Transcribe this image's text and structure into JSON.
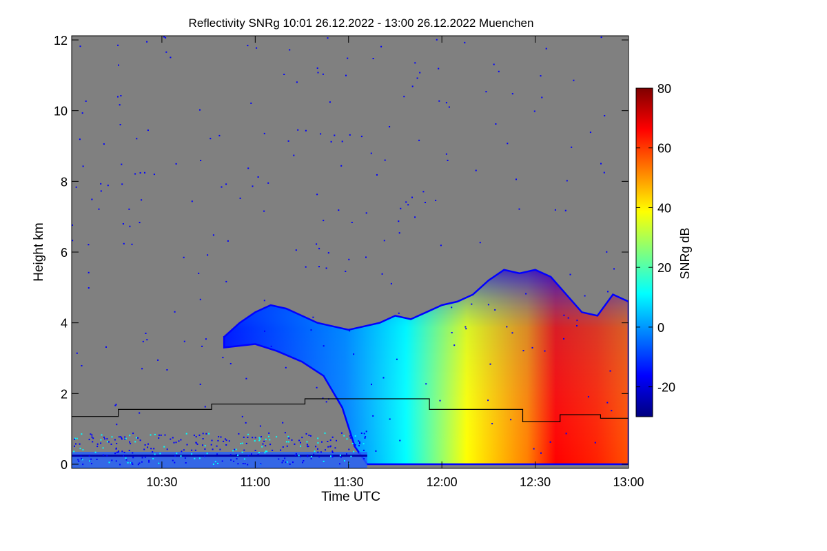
{
  "title": "Reflectivity SNRg   10:01 26.12.2022 - 13:00 26.12.2022 Muenchen",
  "chart_data": {
    "type": "heatmap",
    "xlabel": "Time UTC",
    "ylabel": "Height km",
    "xlim_minutes": [
      601,
      780
    ],
    "x_ticks": [
      {
        "value": 630,
        "label": "10:30"
      },
      {
        "value": 660,
        "label": "11:00"
      },
      {
        "value": 690,
        "label": "11:30"
      },
      {
        "value": 720,
        "label": "12:00"
      },
      {
        "value": 750,
        "label": "12:30"
      },
      {
        "value": 780,
        "label": "13:00"
      }
    ],
    "ylim": [
      0,
      12
    ],
    "y_ticks": [
      0,
      2,
      4,
      6,
      8,
      10,
      12
    ],
    "no_data_color": "#808080",
    "colorbar": {
      "label": "SNRg dB",
      "range": [
        -30,
        80
      ],
      "ticks": [
        -20,
        0,
        20,
        40,
        60,
        80
      ],
      "colors": [
        "#00007f",
        "#0000ff",
        "#007fff",
        "#00ffff",
        "#7fff7f",
        "#ffff00",
        "#ff7f00",
        "#ff0000",
        "#7f0000"
      ]
    },
    "cloud_top_km": [
      {
        "t": 650,
        "h": 3.6
      },
      {
        "t": 655,
        "h": 4.0
      },
      {
        "t": 660,
        "h": 4.3
      },
      {
        "t": 665,
        "h": 4.5
      },
      {
        "t": 670,
        "h": 4.4
      },
      {
        "t": 675,
        "h": 4.2
      },
      {
        "t": 680,
        "h": 4.0
      },
      {
        "t": 685,
        "h": 3.9
      },
      {
        "t": 690,
        "h": 3.8
      },
      {
        "t": 695,
        "h": 3.9
      },
      {
        "t": 700,
        "h": 4.0
      },
      {
        "t": 705,
        "h": 4.2
      },
      {
        "t": 710,
        "h": 4.1
      },
      {
        "t": 715,
        "h": 4.3
      },
      {
        "t": 720,
        "h": 4.5
      },
      {
        "t": 725,
        "h": 4.6
      },
      {
        "t": 730,
        "h": 4.8
      },
      {
        "t": 735,
        "h": 5.2
      },
      {
        "t": 740,
        "h": 5.5
      },
      {
        "t": 745,
        "h": 5.4
      },
      {
        "t": 750,
        "h": 5.5
      },
      {
        "t": 755,
        "h": 5.3
      },
      {
        "t": 760,
        "h": 4.8
      },
      {
        "t": 765,
        "h": 4.3
      },
      {
        "t": 770,
        "h": 4.2
      },
      {
        "t": 775,
        "h": 4.8
      },
      {
        "t": 780,
        "h": 4.6
      }
    ],
    "cloud_base_km": [
      {
        "t": 650,
        "h": 3.3
      },
      {
        "t": 660,
        "h": 3.4
      },
      {
        "t": 667,
        "h": 3.2
      },
      {
        "t": 675,
        "h": 2.9
      },
      {
        "t": 682,
        "h": 2.5
      },
      {
        "t": 688,
        "h": 1.6
      },
      {
        "t": 692,
        "h": 0.5
      },
      {
        "t": 696,
        "h": 0.0
      }
    ],
    "threshold_line_km": [
      {
        "t": 601,
        "h": 1.35
      },
      {
        "t": 616,
        "h": 1.35
      },
      {
        "t": 616,
        "h": 1.55
      },
      {
        "t": 646,
        "h": 1.55
      },
      {
        "t": 646,
        "h": 1.7
      },
      {
        "t": 676,
        "h": 1.7
      },
      {
        "t": 676,
        "h": 1.85
      },
      {
        "t": 716,
        "h": 1.85
      },
      {
        "t": 716,
        "h": 1.55
      },
      {
        "t": 746,
        "h": 1.55
      },
      {
        "t": 746,
        "h": 1.2
      },
      {
        "t": 758,
        "h": 1.2
      },
      {
        "t": 758,
        "h": 1.4
      },
      {
        "t": 771,
        "h": 1.4
      },
      {
        "t": 771,
        "h": 1.3
      },
      {
        "t": 780,
        "h": 1.3
      }
    ]
  }
}
